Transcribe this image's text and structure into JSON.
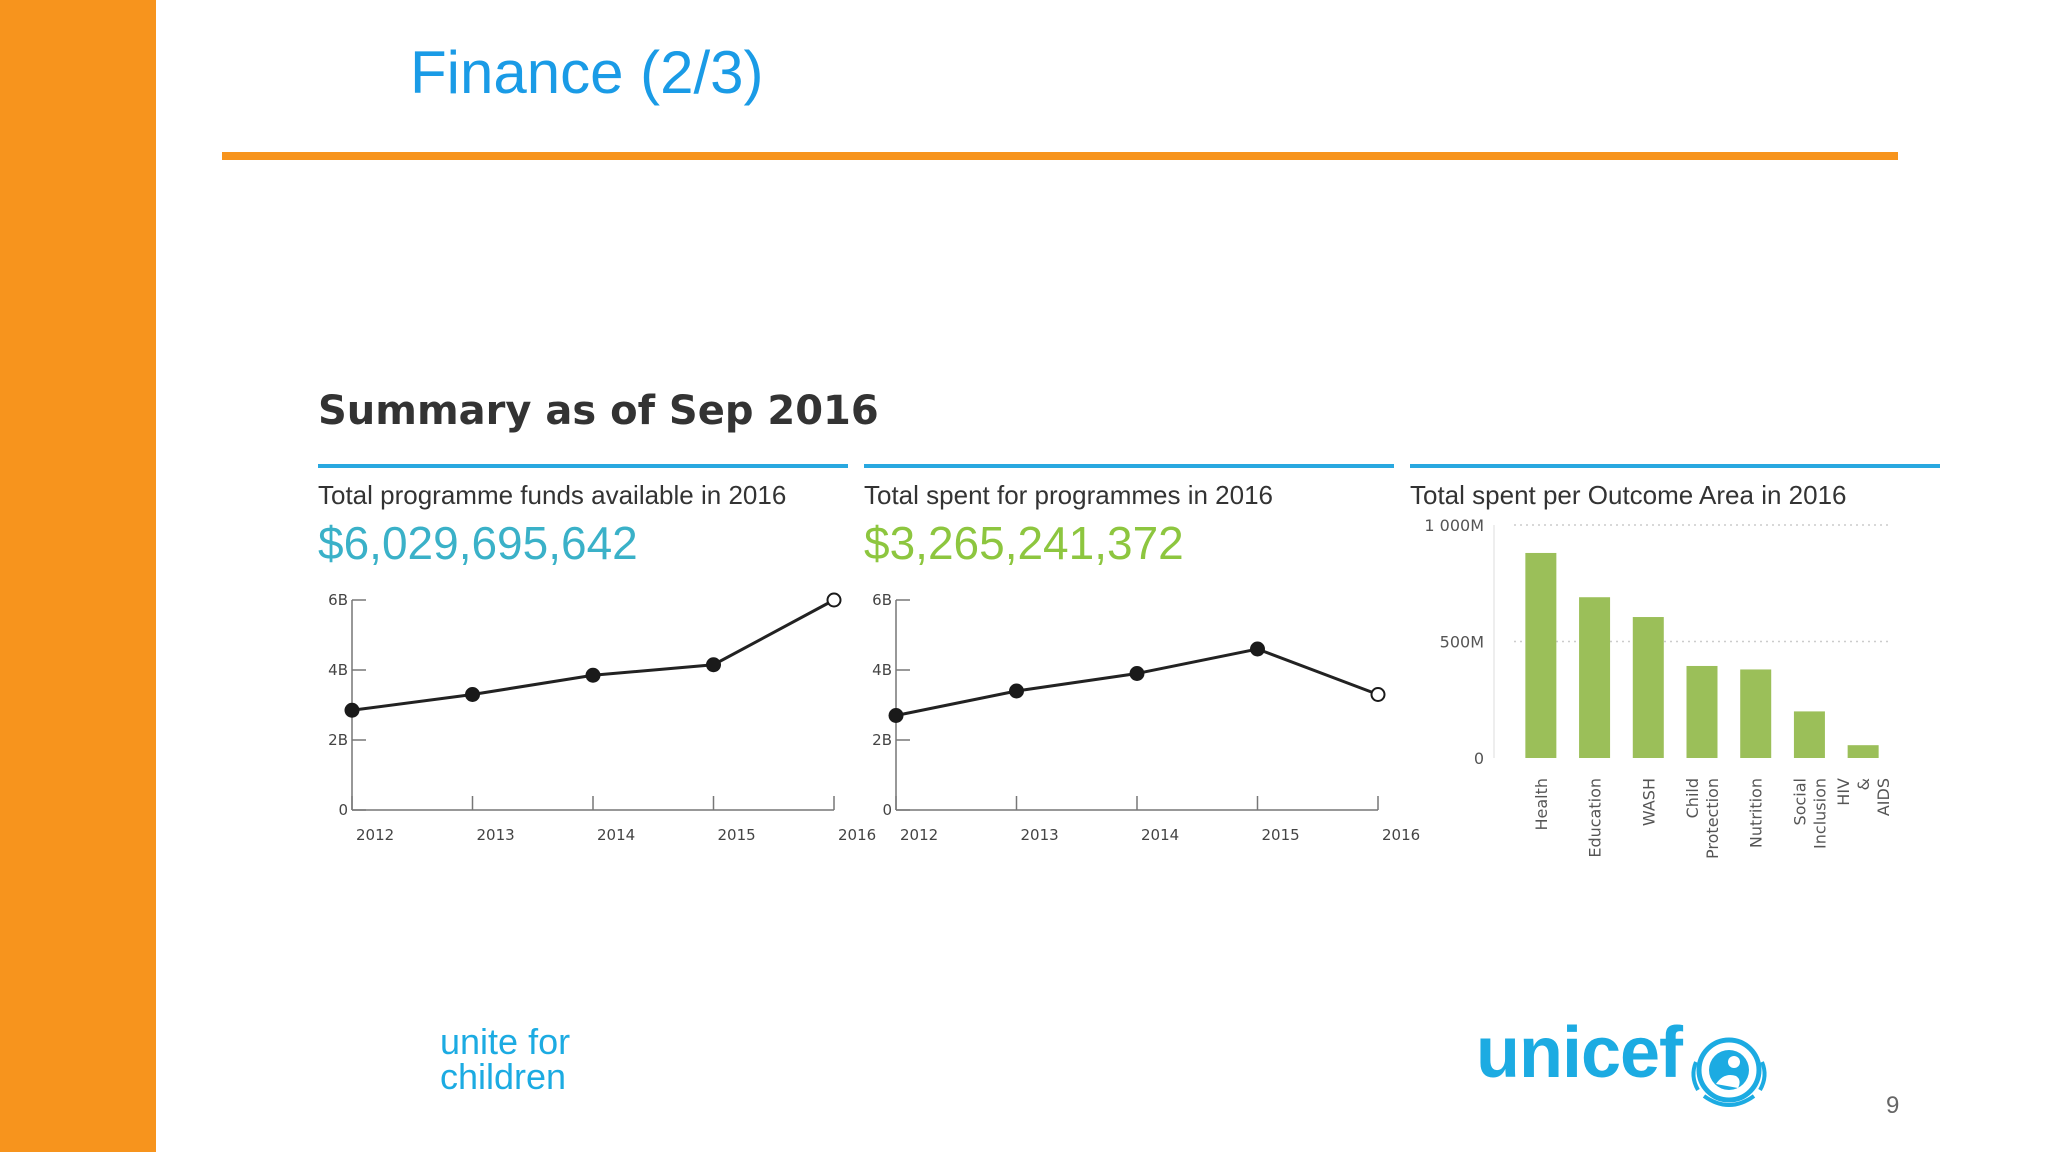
{
  "slide": {
    "title": "Finance (2/3)",
    "summary_heading": "Summary as of Sep 2016",
    "page_number": "9",
    "tagline": [
      "unite for",
      "children"
    ],
    "logo_text": "unicef",
    "colors": {
      "accent": "#F7941D",
      "title": "#1A9BE6",
      "panel_rule": "#29A8E0",
      "teal": "#3AB1C8",
      "green": "#8DC63F",
      "bar": "#9BBF59",
      "brand": "#1CABE2"
    }
  },
  "panels": [
    {
      "label": "Total programme funds available in 2016",
      "value": "$6,029,695,642"
    },
    {
      "label": "Total spent for programmes in 2016",
      "value": "$3,265,241,372"
    },
    {
      "label": "Total spent per Outcome Area in 2016"
    }
  ],
  "chart_data": [
    {
      "type": "line",
      "x": [
        "2012",
        "2013",
        "2014",
        "2015",
        "2016"
      ],
      "values": [
        2.85,
        3.3,
        3.85,
        4.15,
        6.0
      ],
      "ylim": [
        0,
        6
      ],
      "y_ticks": [
        "0",
        "2B",
        "4B",
        "6B"
      ],
      "open_last_point": true
    },
    {
      "type": "line",
      "x": [
        "2012",
        "2013",
        "2014",
        "2015",
        "2016"
      ],
      "values": [
        2.7,
        3.4,
        3.9,
        4.6,
        3.3
      ],
      "ylim": [
        0,
        6
      ],
      "y_ticks": [
        "0",
        "2B",
        "4B",
        "6B"
      ],
      "open_last_point": true
    },
    {
      "type": "bar",
      "categories": [
        "Health",
        "Education",
        "WASH",
        "Child Protection",
        "Nutrition",
        "Social Inclusion",
        "HIV & AIDS"
      ],
      "values": [
        880,
        690,
        605,
        395,
        380,
        200,
        55
      ],
      "ylim": [
        0,
        1000
      ],
      "y_ticks": [
        "0",
        "500M",
        "1 000M"
      ],
      "grid": true
    }
  ]
}
